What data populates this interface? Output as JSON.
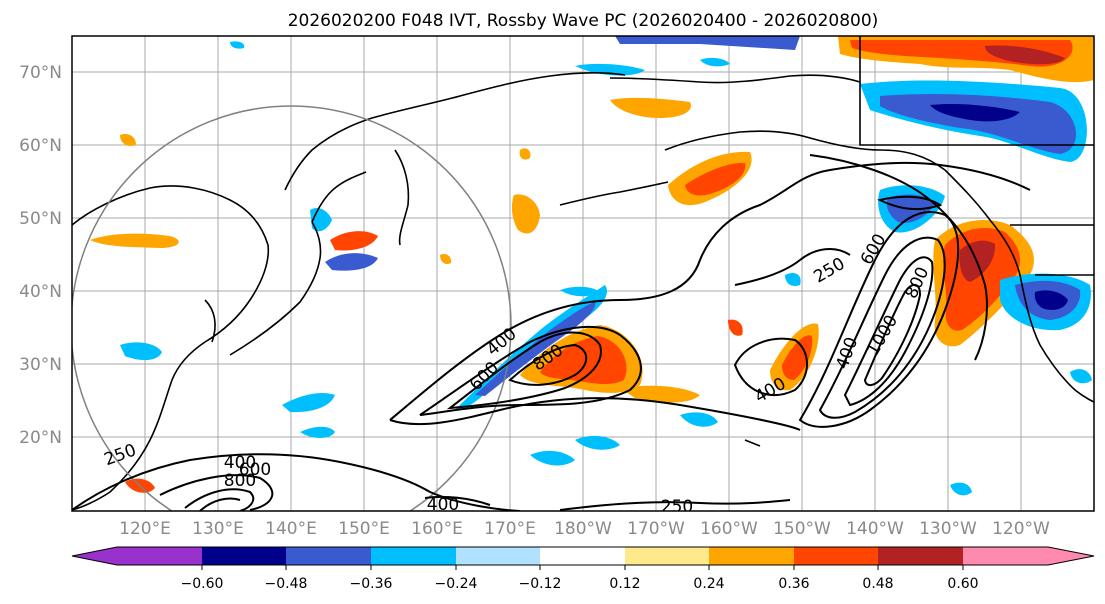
{
  "title": "2026020200 F048 IVT, Rossby Wave PC (2026020400 - 2026020800)",
  "map": {
    "lat_labels": [
      "70°N",
      "60°N",
      "50°N",
      "40°N",
      "30°N",
      "20°N"
    ],
    "lon_labels": [
      "120°E",
      "130°E",
      "140°E",
      "150°E",
      "160°E",
      "170°E",
      "180°W",
      "170°W",
      "160°W",
      "150°W",
      "140°W",
      "130°W",
      "120°W"
    ],
    "contour_labels": [
      "250",
      "400",
      "600",
      "800",
      "1000"
    ]
  },
  "colorbar": {
    "colors": [
      "#9932cc",
      "#00008b",
      "#3a5bd0",
      "#00bfff",
      "#b0e2ff",
      "#ffffff",
      "#ffe98a",
      "#ffa500",
      "#ff4500",
      "#b22222",
      "#ff8aaf"
    ],
    "tick_labels": [
      "−0.60",
      "−0.48",
      "−0.36",
      "−0.24",
      "−0.12",
      "0.12",
      "0.24",
      "0.36",
      "0.48",
      "0.60"
    ]
  },
  "chart_data": {
    "type": "map",
    "title": "2026020200 F048 IVT, Rossby Wave PC (2026020400 - 2026020800)",
    "ivt_contour_levels": [
      250,
      400,
      600,
      800,
      1000
    ],
    "pc_levels": [
      -0.6,
      -0.48,
      -0.36,
      -0.24,
      -0.12,
      0.12,
      0.24,
      0.36,
      0.48,
      0.6
    ],
    "lat_range": [
      10,
      75
    ],
    "lon_range_east": [
      110,
      250
    ]
  }
}
